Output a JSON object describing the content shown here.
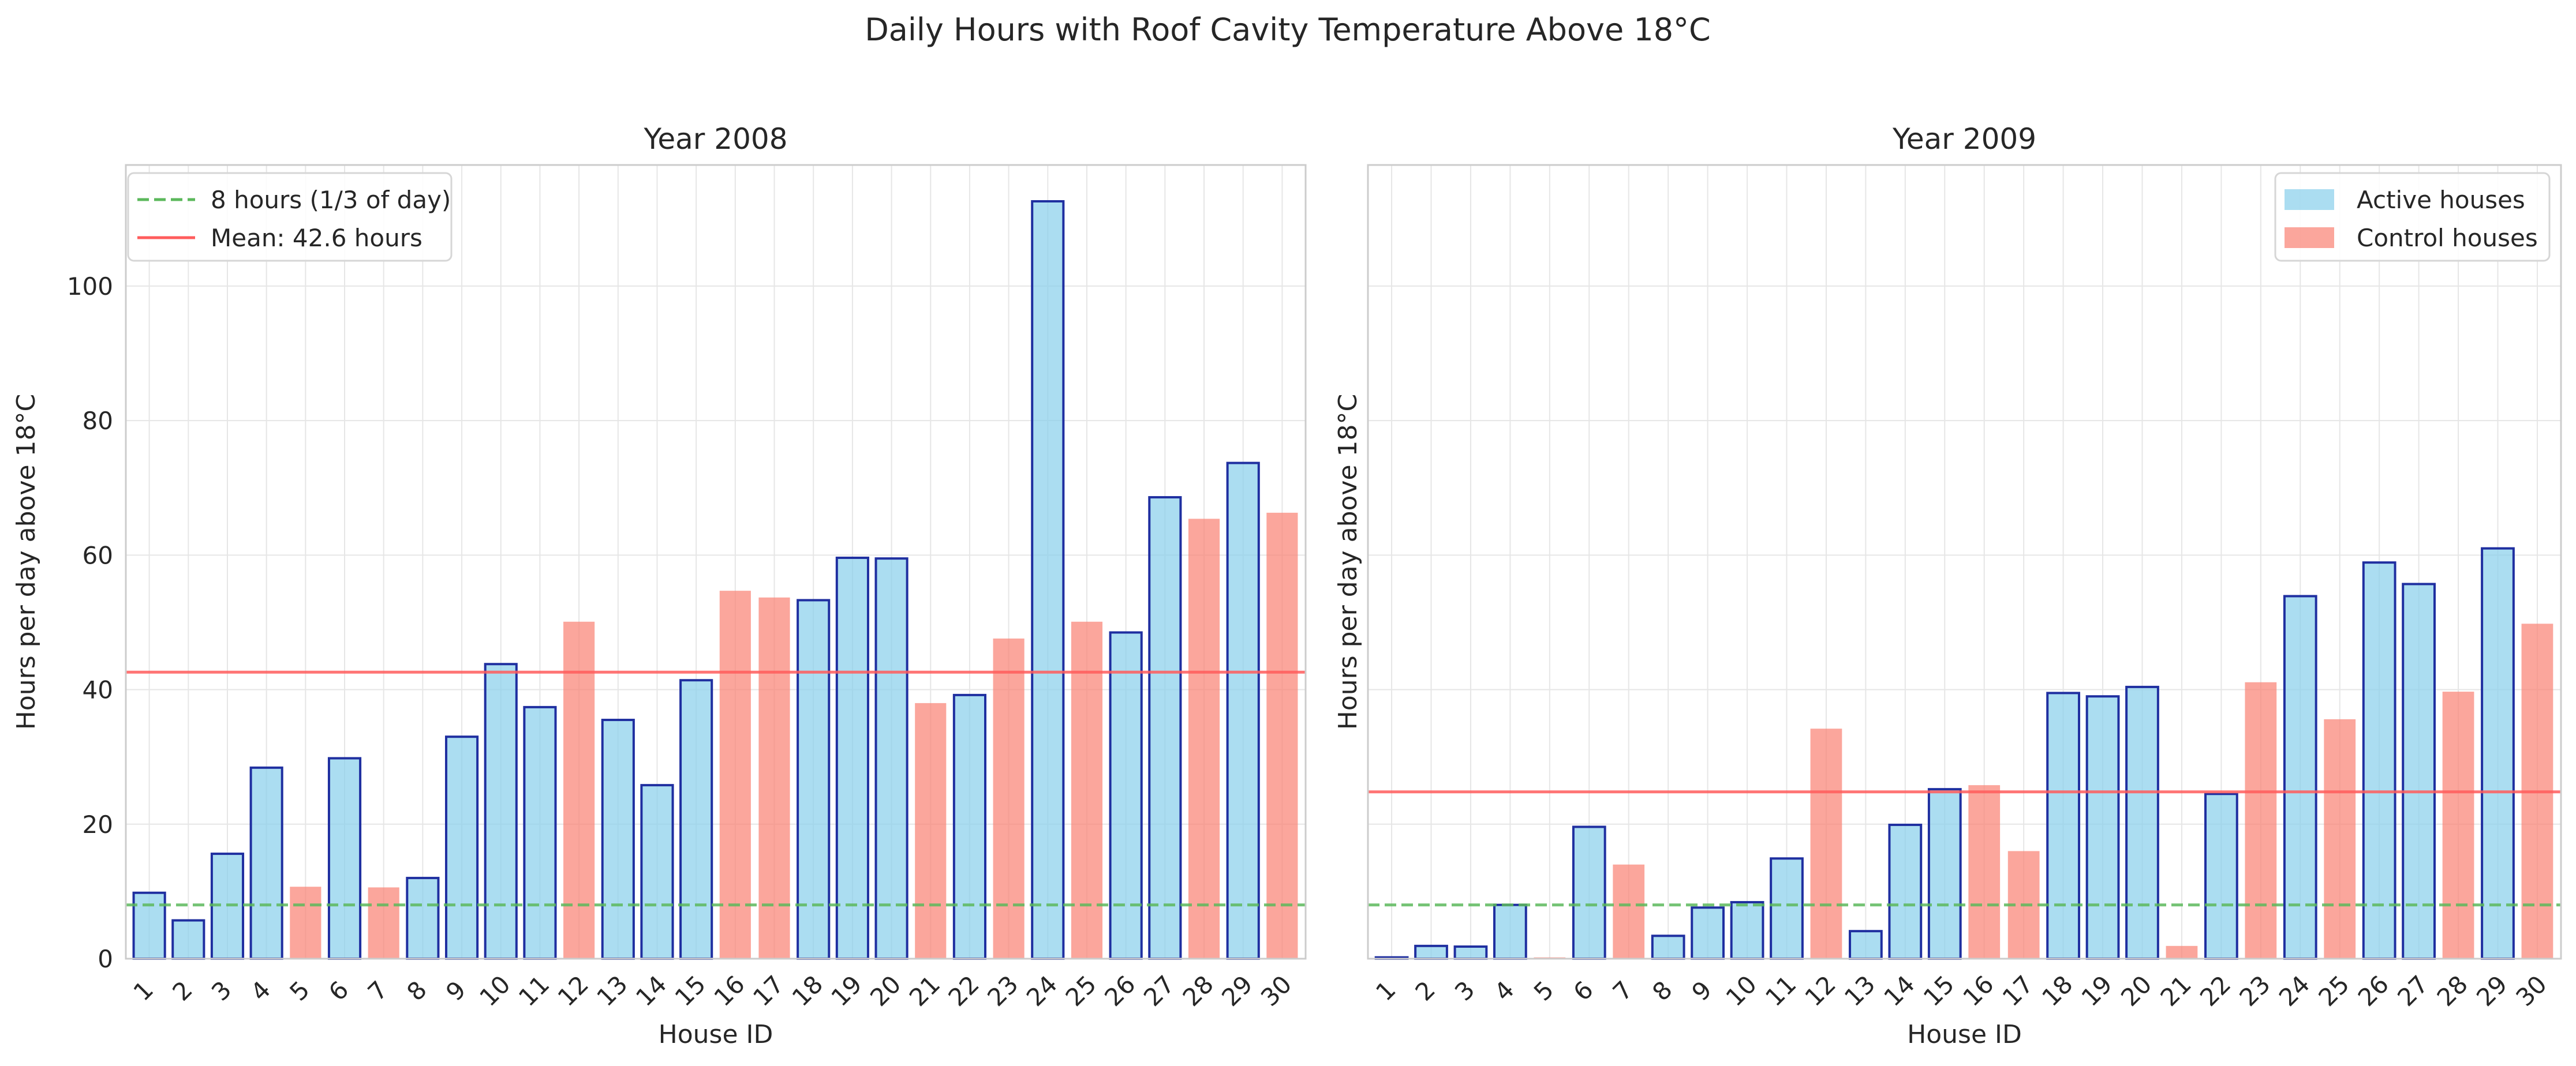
{
  "chart_data": {
    "type": "bar",
    "title": "Daily Hours with Roof Cavity Temperature Above 18°C",
    "colors": {
      "active": "#87CEEB",
      "active_edge": "#1f2fa0",
      "control": "#FA8072",
      "reference_line": "#5cb85c",
      "mean_line": "#ff5c5c"
    },
    "legend_items": [
      {
        "label": "Active houses",
        "group": "active"
      },
      {
        "label": "Control houses",
        "group": "control"
      }
    ],
    "panels": [
      {
        "title": "Year 2008",
        "xlabel": "House ID",
        "ylabel": "Hours per day above 18°C",
        "ylim": [
          0,
          118
        ],
        "yticks": [
          0,
          20,
          40,
          60,
          80,
          100
        ],
        "show_yticklabels": true,
        "grid": true,
        "categories": [
          "1",
          "2",
          "3",
          "4",
          "5",
          "6",
          "7",
          "8",
          "9",
          "10",
          "11",
          "12",
          "13",
          "14",
          "15",
          "16",
          "17",
          "18",
          "19",
          "20",
          "21",
          "22",
          "23",
          "24",
          "25",
          "26",
          "27",
          "28",
          "29",
          "30"
        ],
        "groups": [
          "active",
          "active",
          "active",
          "active",
          "control",
          "active",
          "control",
          "active",
          "active",
          "active",
          "active",
          "control",
          "active",
          "active",
          "active",
          "control",
          "control",
          "active",
          "active",
          "active",
          "control",
          "active",
          "control",
          "active",
          "control",
          "active",
          "active",
          "control",
          "active",
          "control"
        ],
        "values": [
          9.8,
          5.7,
          15.6,
          28.4,
          10.7,
          29.8,
          10.6,
          12.0,
          33.0,
          43.8,
          37.4,
          50.1,
          35.5,
          25.8,
          41.4,
          54.7,
          53.7,
          53.3,
          59.6,
          59.5,
          38.0,
          39.2,
          47.6,
          112.6,
          50.1,
          48.5,
          68.6,
          65.4,
          73.7,
          66.3
        ],
        "reference_line": {
          "value": 8,
          "label": "8 hours (1/3 of day)"
        },
        "mean_line": {
          "value": 42.6,
          "label": "Mean: 42.6 hours"
        },
        "legend": "top-left"
      },
      {
        "title": "Year 2009",
        "xlabel": "House ID",
        "ylabel": "Hours per day above 18°C",
        "ylim": [
          0,
          118
        ],
        "yticks": [
          0,
          20,
          40,
          60,
          80,
          100
        ],
        "show_yticklabels": false,
        "grid": true,
        "categories": [
          "1",
          "2",
          "3",
          "4",
          "5",
          "6",
          "7",
          "8",
          "9",
          "10",
          "11",
          "12",
          "13",
          "14",
          "15",
          "16",
          "17",
          "18",
          "19",
          "20",
          "21",
          "22",
          "23",
          "24",
          "25",
          "26",
          "27",
          "28",
          "29",
          "30"
        ],
        "groups": [
          "active",
          "active",
          "active",
          "active",
          "control",
          "active",
          "control",
          "active",
          "active",
          "active",
          "active",
          "control",
          "active",
          "active",
          "active",
          "control",
          "control",
          "active",
          "active",
          "active",
          "control",
          "active",
          "control",
          "active",
          "control",
          "active",
          "active",
          "control",
          "active",
          "control"
        ],
        "values": [
          0.2,
          1.9,
          1.8,
          8.0,
          0.2,
          19.6,
          14.0,
          3.4,
          7.6,
          8.4,
          14.9,
          34.2,
          4.1,
          19.9,
          25.2,
          25.8,
          16.0,
          39.5,
          39.0,
          40.4,
          1.9,
          24.5,
          41.1,
          53.9,
          35.6,
          58.9,
          55.7,
          39.7,
          61.0,
          49.8
        ],
        "reference_line": {
          "value": 8
        },
        "mean_line": {
          "value": 24.8
        },
        "legend": "top-right"
      }
    ]
  }
}
